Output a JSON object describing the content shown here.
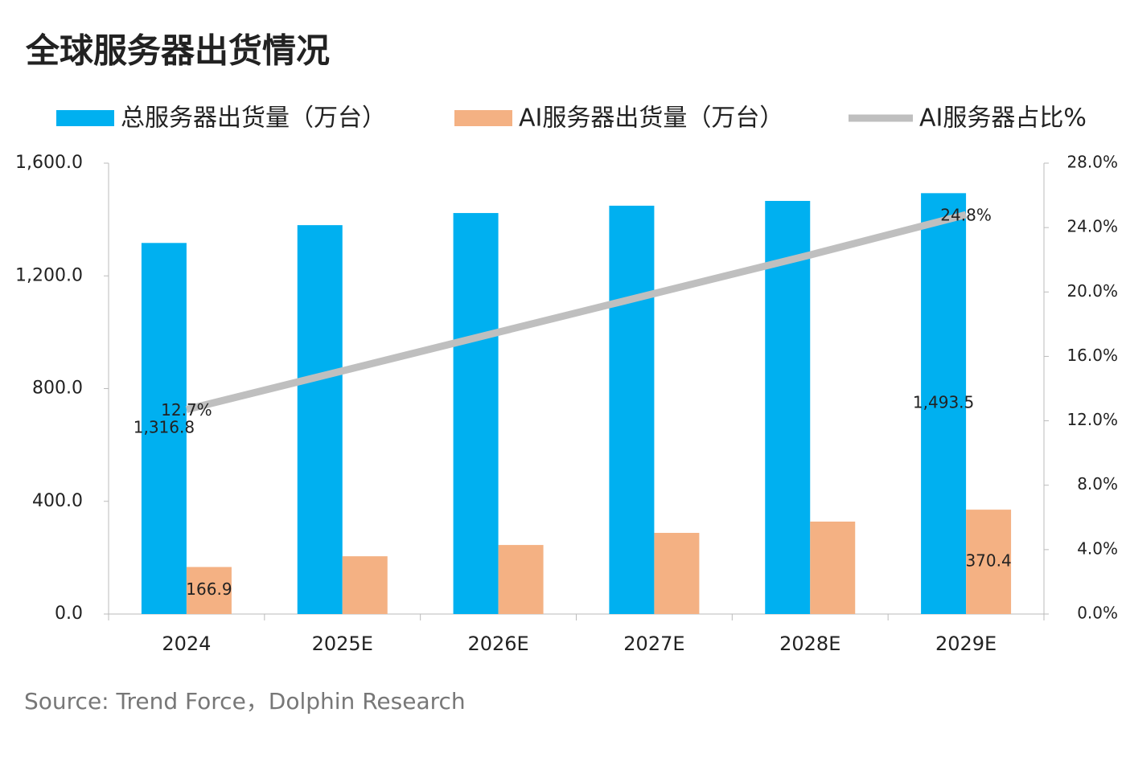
{
  "chart_data": {
    "type": "bar-line",
    "title": "全球服务器出货情况",
    "source": "Source: Trend Force，Dolphin Research",
    "categories": [
      "2024",
      "2025E",
      "2026E",
      "2027E",
      "2028E",
      "2029E"
    ],
    "series": [
      {
        "name": "总服务器出货量（万台）",
        "type": "bar",
        "color": "#00b0f0",
        "values": [
          1316.8,
          1380,
          1423,
          1449,
          1466,
          1493.5
        ],
        "value_labels": [
          "1,316.8",
          null,
          null,
          null,
          null,
          "1,493.5"
        ]
      },
      {
        "name": "AI服务器出货量（万台）",
        "type": "bar",
        "color": "#f4b183",
        "values": [
          166.9,
          205,
          245,
          288,
          328,
          370.4
        ],
        "value_labels": [
          "166.9",
          null,
          null,
          null,
          null,
          "370.4"
        ]
      },
      {
        "name": "AI服务器占比%",
        "type": "line",
        "axis": "y2",
        "color": "#bfbfbf",
        "values": [
          12.7,
          15.1,
          17.5,
          19.9,
          22.3,
          24.8
        ],
        "value_labels": [
          "12.7%",
          null,
          null,
          null,
          null,
          "24.8%"
        ]
      }
    ],
    "ylim": [
      0,
      1600
    ],
    "yticks": [
      {
        "value": 0,
        "label": "0.0"
      },
      {
        "value": 400,
        "label": "400.0"
      },
      {
        "value": 800,
        "label": "800.0"
      },
      {
        "value": 1200,
        "label": "1,200.0"
      },
      {
        "value": 1600,
        "label": "1,600.0"
      }
    ],
    "y2lim": [
      0,
      28
    ],
    "y2ticks": [
      {
        "value": 0,
        "label": "0.0%"
      },
      {
        "value": 4,
        "label": "4.0%"
      },
      {
        "value": 8,
        "label": "8.0%"
      },
      {
        "value": 12,
        "label": "12.0%"
      },
      {
        "value": 16,
        "label": "16.0%"
      },
      {
        "value": 20,
        "label": "20.0%"
      },
      {
        "value": 24,
        "label": "24.0%"
      },
      {
        "value": 28,
        "label": "28.0%"
      }
    ]
  }
}
